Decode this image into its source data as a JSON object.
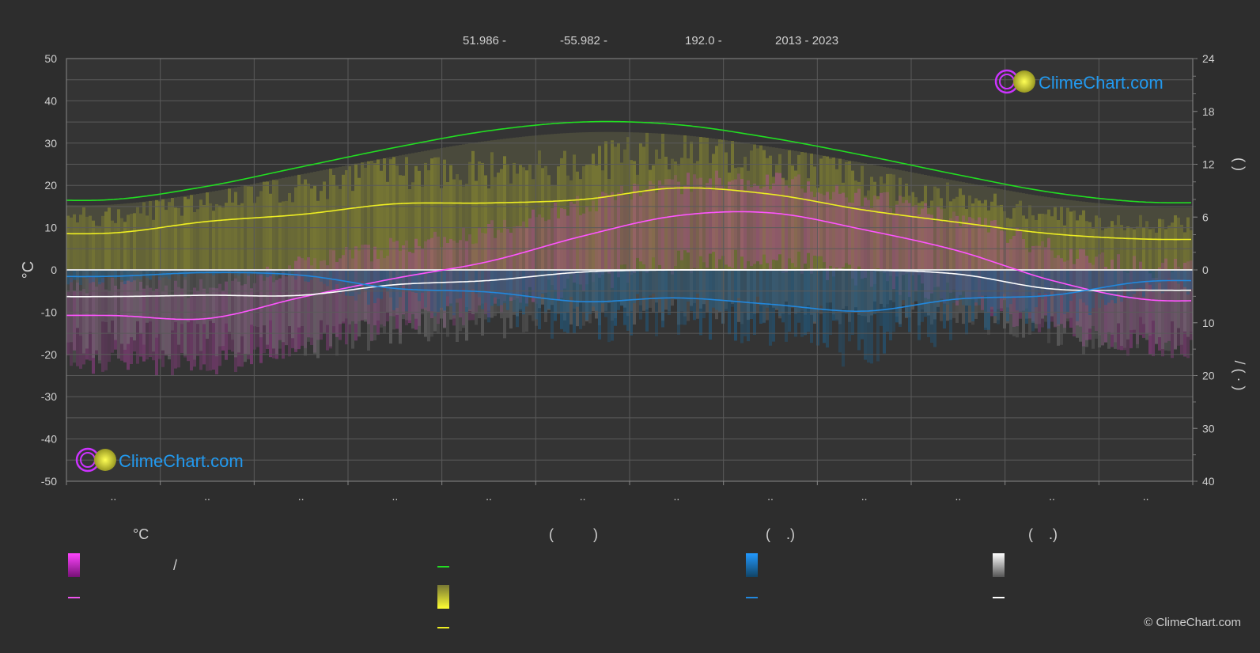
{
  "header": {
    "lat": "51.986 -",
    "lon": "-55.982 -",
    "elev": "192.0 -",
    "period": "2013 - 2023"
  },
  "logo_text": "ClimeChart.com",
  "copyright": "© ClimeChart.com",
  "legend": {
    "temp_unit": "°C",
    "sun_head": "(          )",
    "rain_head": "(    .)",
    "snow_head": "(    .)",
    "slash": "/"
  },
  "colors": {
    "background": "#2d2d2d",
    "daylight": "#22dd22",
    "sunshine": "#eeee22",
    "temp_max": "#ff55ff",
    "temp_min_swatch": "#ee22ee",
    "precip": "#2288dd",
    "snow": "#ffffff"
  },
  "chart_data": {
    "type": "line",
    "months": [
      "..",
      "..",
      "..",
      "..",
      "..",
      "..",
      "..",
      "..",
      "..",
      "..",
      "..",
      ".."
    ],
    "left_axis": {
      "label": "°C",
      "min": -50,
      "max": 50,
      "ticks": [
        "50",
        "40",
        "30",
        "20",
        "10",
        "0",
        "-10",
        "-20",
        "-30",
        "-40",
        "-50"
      ]
    },
    "right_axis_top": {
      "label": "(  )",
      "min": 0,
      "max": 24,
      "ticks": [
        "24",
        "18",
        "12",
        "6",
        "0"
      ]
    },
    "right_axis_bottom": {
      "label": "/  ( · )",
      "min": 0,
      "max": 40,
      "ticks": [
        "0",
        "10",
        "20",
        "30",
        "40"
      ]
    },
    "series": [
      {
        "axis": "hours",
        "color": "#22dd22",
        "values": [
          8.0,
          9.5,
          11.7,
          13.9,
          15.8,
          16.8,
          16.5,
          15.0,
          13.0,
          10.8,
          8.8,
          7.7
        ]
      },
      {
        "axis": "hours",
        "color": "#eeee22",
        "values": [
          4.2,
          5.5,
          6.3,
          7.5,
          7.6,
          8.0,
          9.3,
          8.6,
          6.8,
          5.4,
          4.1,
          3.5
        ]
      },
      {
        "axis": "temp",
        "color": "#ff55ff",
        "values": [
          -10.8,
          -11.5,
          -6.5,
          -2.0,
          2.0,
          8.0,
          12.8,
          13.5,
          9.5,
          4.5,
          -2.5,
          -7.0
        ]
      },
      {
        "axis": "temp",
        "color": "#ffffff",
        "values": [
          -6.3,
          -6.0,
          -6.0,
          -3.5,
          -2.5,
          -0.5,
          0.0,
          0.0,
          0.0,
          -1.0,
          -4.5,
          -4.8
        ]
      },
      {
        "axis": "precip",
        "color": "#2288dd",
        "values": [
          1.2,
          0.5,
          1.0,
          3.5,
          4.2,
          6.0,
          5.3,
          6.5,
          7.8,
          5.5,
          4.8,
          2.2
        ]
      }
    ]
  }
}
